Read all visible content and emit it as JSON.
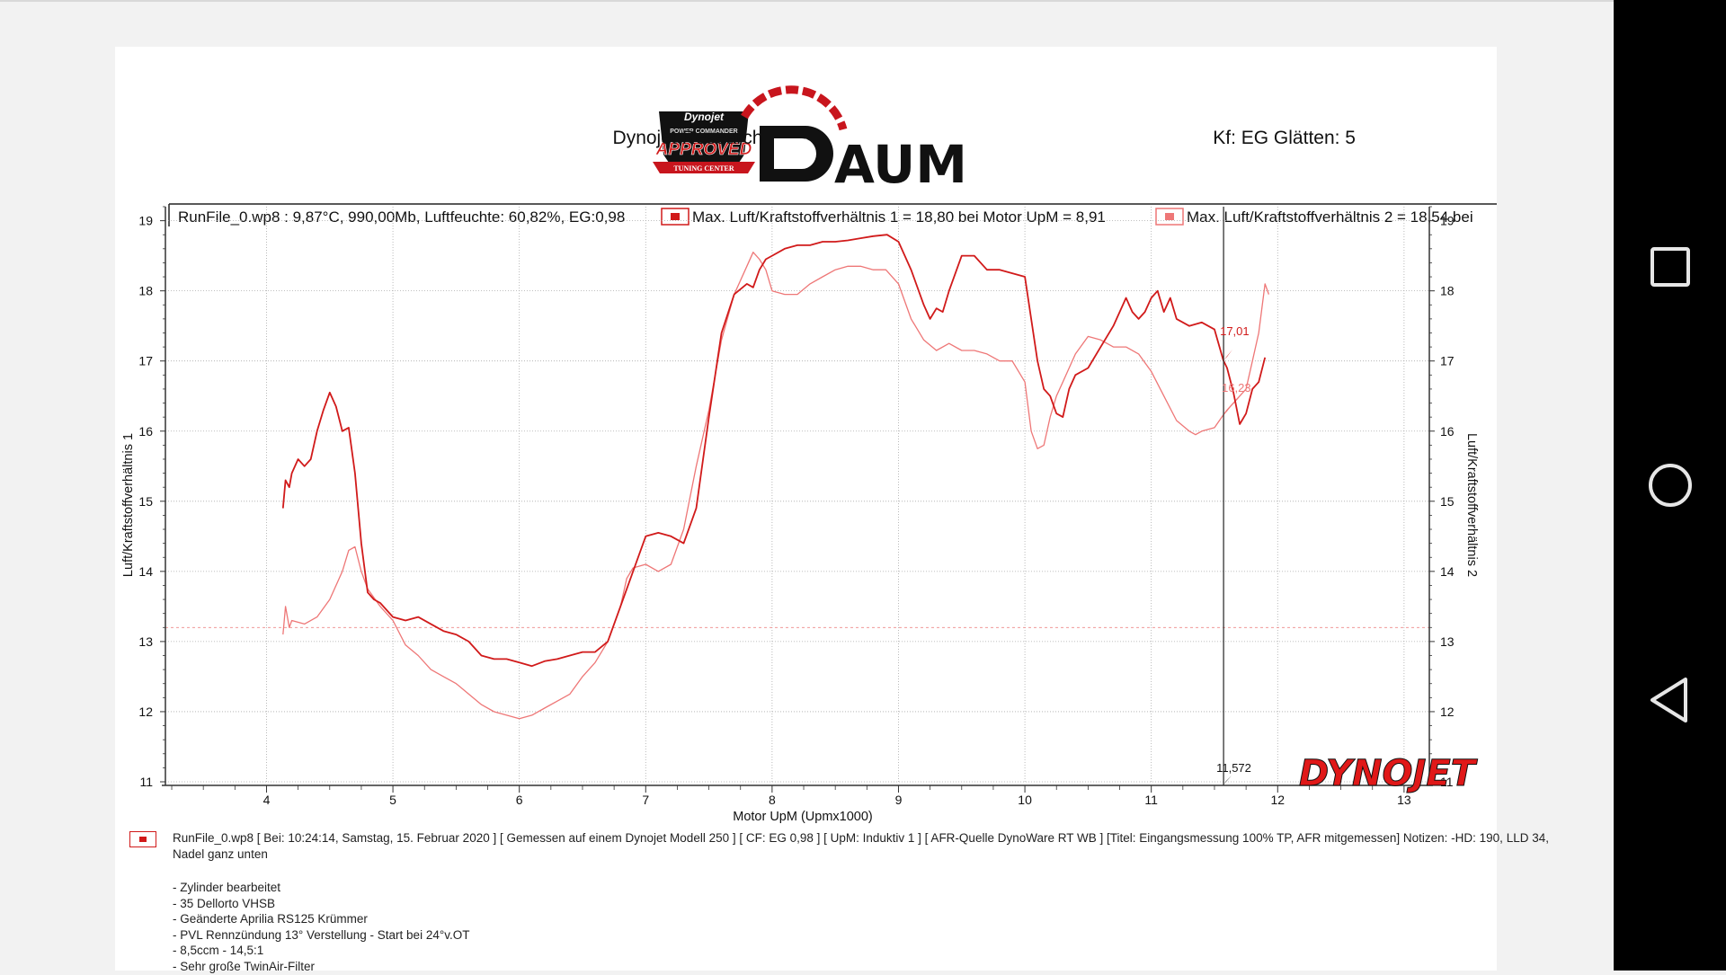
{
  "header": {
    "left_title": "Dynojet Research",
    "right_title": "Kf: EG Glätten: 5",
    "brand_badge_top": "Dynojet",
    "brand_badge_mid": "POWER COMMANDER",
    "brand_badge_approved": "APPROVED",
    "brand_badge_bottom": "TUNING CENTER",
    "brand_name": "AUM",
    "watermark": "DYNOJET"
  },
  "legend": {
    "runfile": "RunFile_0.wp8 : 9,87°C, 990,00Mb, Luftfeuchte: 60,82%, EG:0,98",
    "series1": "Max. Luft/Kraftstoffverhältnis 1 = 18,80 bei Motor UpM = 8,91",
    "series2": "Max. Luft/Kraftstoffverhältnis 2 = 18,54 bei"
  },
  "cursor": {
    "x_value": "11,572",
    "value1": "17,01",
    "value2": "16,23"
  },
  "notes": {
    "runfile_desc": "RunFile_0.wp8 [ Bei: 10:24:14, Samstag, 15. Februar 2020 ] [ Gemessen auf einem Dynojet Modell 250 ] [ CF: EG 0,98 ] [ UpM: Induktiv 1 ] [ AFR-Quelle  DynoWare RT WB ] [Titel: Eingangsmessung 100% TP, AFR mitgemessen]  Notizen: -HD: 190, LLD 34, Nadel ganz unten",
    "lines": [
      "- Zylinder bearbeitet",
      "- 35 Dellorto VHSB",
      "- Geänderte Aprilia RS125 Krümmer",
      "- PVL Rennzündung 13° Verstellung - Start bei 24°v.OT",
      "- 8,5ccm - 14,5:1",
      "- Sehr große TwinAir-Filter"
    ]
  },
  "colors": {
    "series1": "#d11a1a",
    "series2": "#ee7777",
    "grid": "#aaaaaa"
  },
  "nav_icons": [
    "recent-apps-icon",
    "home-icon",
    "back-icon"
  ],
  "chart_data": {
    "type": "line",
    "title": "Dynojet Research",
    "xlabel": "Motor UpM (Upmx1000)",
    "ylabel": "Luft/Kraftstoffverhältnis 1",
    "ylabel_right": "Luft/Kraftstoffverhältnis 2",
    "xlim": [
      3.2,
      13.2
    ],
    "ylim": [
      11,
      19.2
    ],
    "xticks": [
      4,
      5,
      6,
      7,
      8,
      9,
      10,
      11,
      12,
      13
    ],
    "yticks": [
      11,
      12,
      13,
      14,
      15,
      16,
      17,
      18,
      19
    ],
    "reference_line_y": 13.2,
    "cursor_x": 11.572,
    "series": [
      {
        "name": "Max. Luft/Kraftstoffverhältnis 1",
        "x": [
          4.13,
          4.15,
          4.18,
          4.2,
          4.25,
          4.3,
          4.35,
          4.4,
          4.45,
          4.5,
          4.55,
          4.6,
          4.65,
          4.7,
          4.75,
          4.8,
          4.85,
          4.9,
          5.0,
          5.1,
          5.2,
          5.3,
          5.4,
          5.5,
          5.6,
          5.7,
          5.8,
          5.9,
          6.0,
          6.1,
          6.2,
          6.3,
          6.4,
          6.5,
          6.6,
          6.7,
          6.8,
          6.9,
          7.0,
          7.1,
          7.2,
          7.3,
          7.4,
          7.5,
          7.6,
          7.7,
          7.8,
          7.85,
          7.9,
          7.95,
          8.0,
          8.1,
          8.2,
          8.3,
          8.4,
          8.5,
          8.6,
          8.7,
          8.8,
          8.91,
          9.0,
          9.1,
          9.2,
          9.25,
          9.3,
          9.35,
          9.4,
          9.5,
          9.6,
          9.7,
          9.8,
          9.9,
          10.0,
          10.05,
          10.1,
          10.15,
          10.2,
          10.25,
          10.3,
          10.35,
          10.4,
          10.5,
          10.6,
          10.7,
          10.8,
          10.85,
          10.9,
          10.95,
          11.0,
          11.05,
          11.1,
          11.15,
          11.2,
          11.3,
          11.4,
          11.5,
          11.57,
          11.6,
          11.65,
          11.7,
          11.75,
          11.8,
          11.85,
          11.9
        ],
        "y": [
          14.9,
          15.3,
          15.2,
          15.4,
          15.6,
          15.5,
          15.6,
          16.0,
          16.3,
          16.55,
          16.35,
          16.0,
          16.05,
          15.4,
          14.4,
          13.7,
          13.6,
          13.55,
          13.35,
          13.3,
          13.35,
          13.25,
          13.15,
          13.1,
          13.0,
          12.8,
          12.75,
          12.75,
          12.7,
          12.65,
          12.72,
          12.75,
          12.8,
          12.85,
          12.85,
          13.0,
          13.5,
          14.0,
          14.5,
          14.55,
          14.5,
          14.4,
          14.9,
          16.2,
          17.4,
          17.95,
          18.1,
          18.05,
          18.3,
          18.45,
          18.5,
          18.6,
          18.65,
          18.65,
          18.7,
          18.7,
          18.72,
          18.75,
          18.78,
          18.8,
          18.7,
          18.3,
          17.8,
          17.6,
          17.75,
          17.7,
          18.0,
          18.5,
          18.5,
          18.3,
          18.3,
          18.25,
          18.2,
          17.6,
          17.0,
          16.6,
          16.5,
          16.25,
          16.2,
          16.6,
          16.8,
          16.9,
          17.2,
          17.5,
          17.9,
          17.7,
          17.6,
          17.7,
          17.9,
          18.0,
          17.7,
          17.9,
          17.6,
          17.5,
          17.55,
          17.45,
          17.01,
          16.9,
          16.55,
          16.1,
          16.25,
          16.6,
          16.7,
          17.05
        ]
      },
      {
        "name": "Max. Luft/Kraftstoffverhältnis 2",
        "x": [
          4.13,
          4.15,
          4.18,
          4.2,
          4.3,
          4.4,
          4.5,
          4.6,
          4.65,
          4.7,
          4.75,
          4.8,
          4.9,
          5.0,
          5.1,
          5.2,
          5.3,
          5.4,
          5.5,
          5.6,
          5.7,
          5.8,
          5.9,
          6.0,
          6.1,
          6.2,
          6.3,
          6.4,
          6.5,
          6.6,
          6.7,
          6.8,
          6.85,
          6.9,
          7.0,
          7.1,
          7.2,
          7.3,
          7.4,
          7.5,
          7.6,
          7.7,
          7.8,
          7.85,
          7.9,
          7.95,
          8.0,
          8.1,
          8.2,
          8.3,
          8.4,
          8.5,
          8.6,
          8.7,
          8.8,
          8.9,
          9.0,
          9.1,
          9.2,
          9.3,
          9.4,
          9.5,
          9.6,
          9.7,
          9.8,
          9.9,
          10.0,
          10.05,
          10.1,
          10.15,
          10.2,
          10.25,
          10.3,
          10.35,
          10.4,
          10.5,
          10.6,
          10.7,
          10.8,
          10.9,
          11.0,
          11.1,
          11.2,
          11.3,
          11.35,
          11.4,
          11.5,
          11.57,
          11.6,
          11.65,
          11.7,
          11.75,
          11.8,
          11.85,
          11.9,
          11.93
        ],
        "y": [
          13.1,
          13.5,
          13.2,
          13.3,
          13.25,
          13.35,
          13.6,
          14.0,
          14.3,
          14.35,
          14.0,
          13.75,
          13.5,
          13.3,
          12.95,
          12.8,
          12.6,
          12.5,
          12.4,
          12.25,
          12.1,
          12.0,
          11.95,
          11.9,
          11.95,
          12.05,
          12.15,
          12.25,
          12.5,
          12.7,
          13.0,
          13.5,
          13.9,
          14.05,
          14.1,
          14.0,
          14.1,
          14.6,
          15.5,
          16.3,
          17.3,
          17.95,
          18.35,
          18.55,
          18.45,
          18.3,
          18.0,
          17.95,
          17.95,
          18.1,
          18.2,
          18.3,
          18.35,
          18.35,
          18.3,
          18.3,
          18.1,
          17.6,
          17.3,
          17.15,
          17.25,
          17.15,
          17.15,
          17.1,
          17.0,
          17.0,
          16.7,
          16.0,
          15.75,
          15.8,
          16.2,
          16.5,
          16.7,
          16.9,
          17.1,
          17.35,
          17.3,
          17.2,
          17.2,
          17.1,
          16.85,
          16.5,
          16.15,
          16.0,
          15.95,
          16.0,
          16.05,
          16.23,
          16.3,
          16.4,
          16.5,
          16.6,
          17.0,
          17.4,
          18.1,
          17.95
        ]
      }
    ]
  }
}
